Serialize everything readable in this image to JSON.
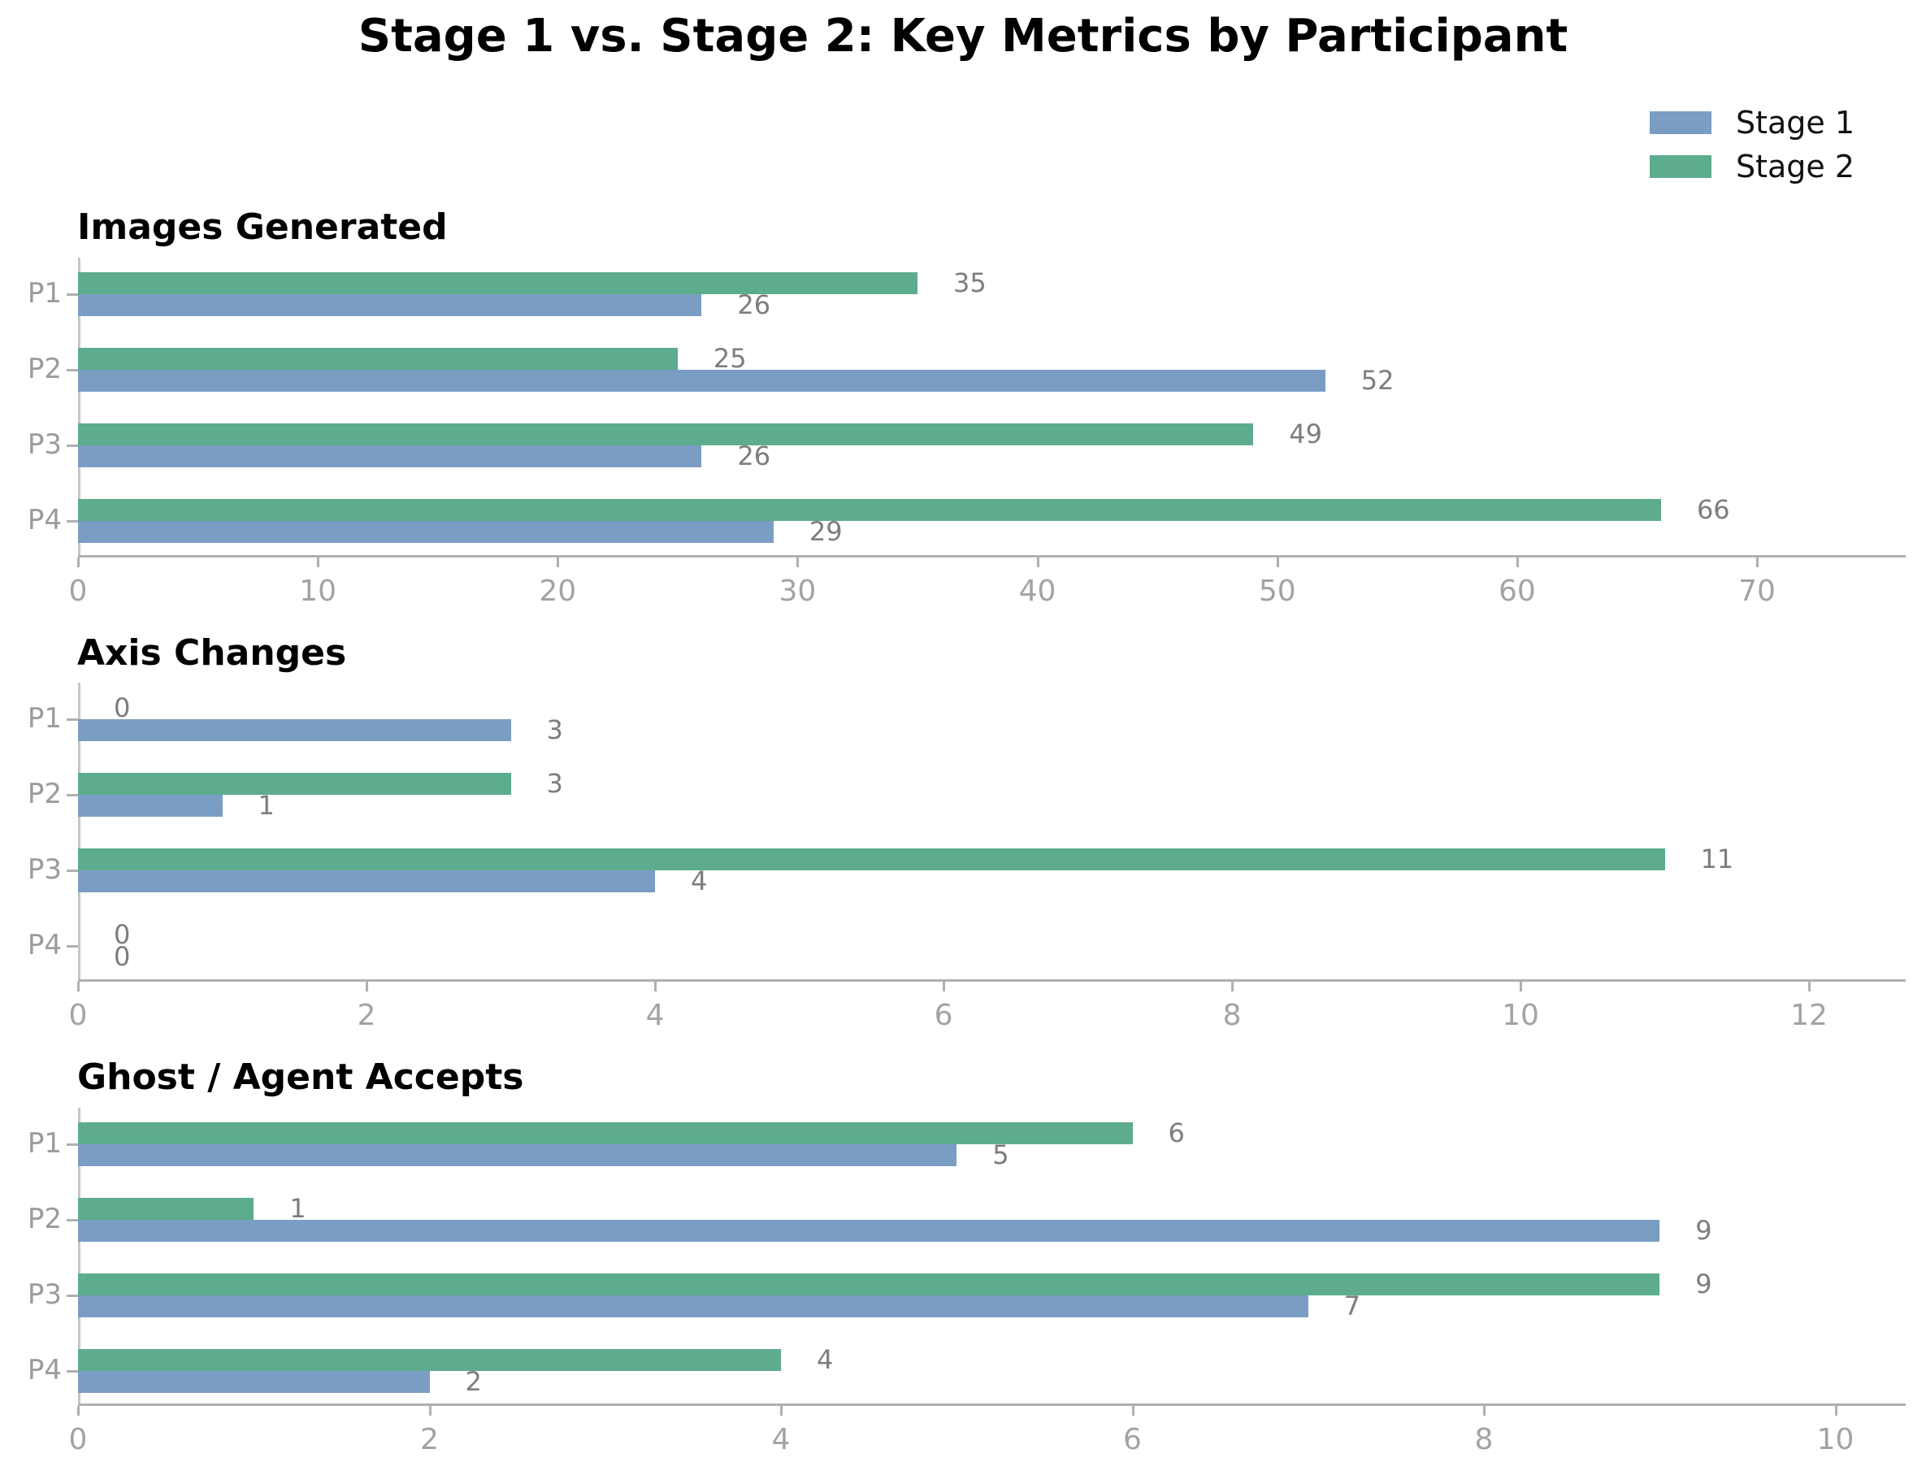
{
  "title": "Stage 1 vs. Stage 2: Key Metrics by Participant",
  "legend": {
    "position": "upper right",
    "items": [
      {
        "label": "Stage 1",
        "color": "#7a9dc3"
      },
      {
        "label": "Stage 2",
        "color": "#5dac8d"
      }
    ]
  },
  "colors": {
    "stage1_blue": "#7a9dc3",
    "stage2_green": "#5dac8d",
    "axis_line": "#b0b0b0",
    "tick_label": "#a3a3a3",
    "category_label": "#9b9b9b",
    "value_label": "#7d7d7d"
  },
  "chart_data": [
    {
      "type": "bar",
      "orientation": "horizontal",
      "title": "Images Generated",
      "categories": [
        "P1",
        "P2",
        "P3",
        "P4"
      ],
      "series": [
        {
          "name": "Stage 1",
          "color": "#7a9dc3",
          "values": [
            26,
            52,
            26,
            29
          ]
        },
        {
          "name": "Stage 2",
          "color": "#5dac8d",
          "values": [
            35,
            25,
            49,
            66
          ]
        }
      ],
      "xticks": [
        0,
        10,
        20,
        30,
        40,
        50,
        60,
        70
      ],
      "xlim": [
        0,
        76.2
      ],
      "xlabel": "",
      "ylabel": "",
      "grid": false,
      "value_labels": true
    },
    {
      "type": "bar",
      "orientation": "horizontal",
      "title": "Axis Changes",
      "categories": [
        "P1",
        "P2",
        "P3",
        "P4"
      ],
      "series": [
        {
          "name": "Stage 1",
          "color": "#7a9dc3",
          "values": [
            3,
            1,
            4,
            0
          ]
        },
        {
          "name": "Stage 2",
          "color": "#5dac8d",
          "values": [
            0,
            3,
            11,
            0
          ]
        }
      ],
      "xticks": [
        0,
        2,
        4,
        6,
        8,
        10,
        12
      ],
      "xlim": [
        0,
        12.67
      ],
      "xlabel": "",
      "ylabel": "",
      "grid": false,
      "value_labels": true
    },
    {
      "type": "bar",
      "orientation": "horizontal",
      "title": "Ghost / Agent Accepts",
      "categories": [
        "P1",
        "P2",
        "P3",
        "P4"
      ],
      "series": [
        {
          "name": "Stage 1",
          "color": "#7a9dc3",
          "values": [
            5,
            9,
            7,
            2
          ]
        },
        {
          "name": "Stage 2",
          "color": "#5dac8d",
          "values": [
            6,
            1,
            9,
            4
          ]
        }
      ],
      "xticks": [
        0,
        2,
        4,
        6,
        8,
        10
      ],
      "xlim": [
        0,
        10.4
      ],
      "xlabel": "",
      "ylabel": "",
      "grid": false,
      "value_labels": true
    }
  ]
}
